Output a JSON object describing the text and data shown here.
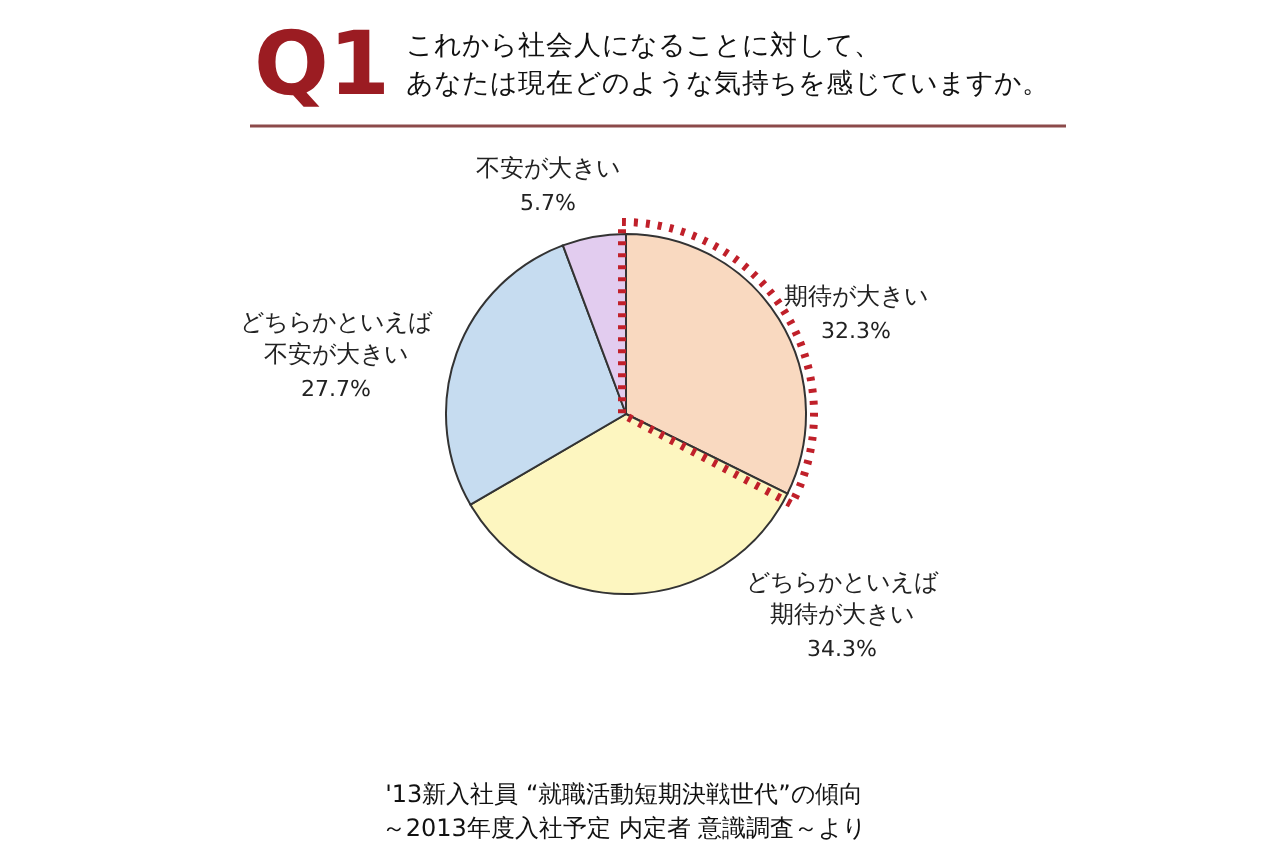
{
  "chart_data": {
    "type": "pie",
    "title": "Q1",
    "subtitle": "これから社会人になることに対して、あなたは現在どのような気持ちを感じていますか。",
    "categories": [
      "期待が大きい",
      "どちらかといえば期待が大きい",
      "どちらかといえば不安が大きい",
      "不安が大きい"
    ],
    "values": [
      32.3,
      34.3,
      27.7,
      5.7
    ],
    "value_labels": [
      "32.3%",
      "34.3%",
      "27.7%",
      "5.7%"
    ],
    "colors": [
      "#f9d9c0",
      "#fdf6c0",
      "#c6dcf0",
      "#e2ccef"
    ],
    "annotations": [
      "'13新入社員 “就職活動短期決戦世代”の傾向",
      "～2013年度入社予定 内定者 意識調査～より"
    ]
  }
}
